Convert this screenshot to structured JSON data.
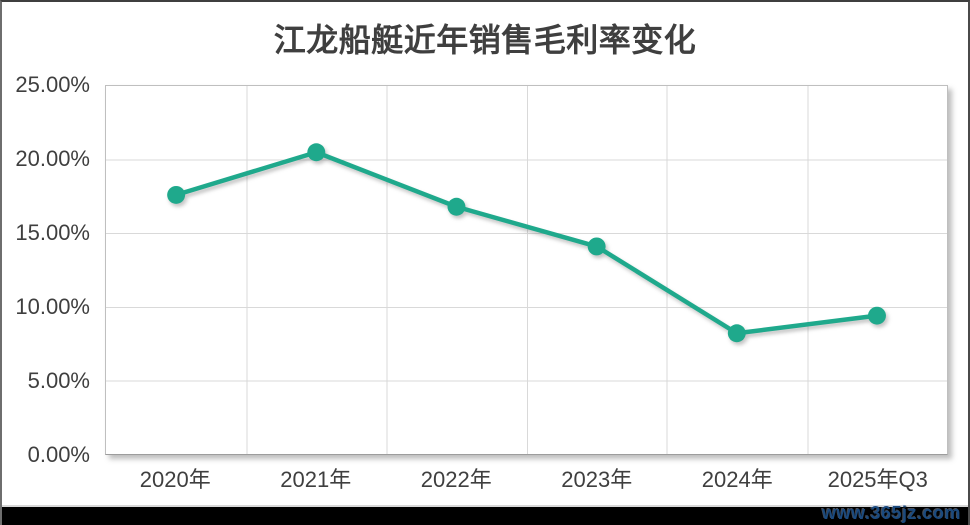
{
  "window": {
    "watermark": "www.365jz.com"
  },
  "chart_data": {
    "type": "line",
    "title": "江龙船艇近年销售毛利率变化",
    "categories": [
      "2020年",
      "2021年",
      "2022年",
      "2023年",
      "2024年",
      "2025年Q3"
    ],
    "values": [
      17.6,
      20.5,
      16.8,
      14.1,
      8.2,
      9.4
    ],
    "value_unit": "%",
    "xlabel": "",
    "ylabel": "",
    "ylim": [
      0,
      25
    ],
    "ytick_step": 5,
    "ytick_labels_top_to_bottom": [
      "25.00%",
      "20.00%",
      "15.00%",
      "10.00%",
      "5.00%",
      "0.00%"
    ],
    "grid": true,
    "legend_position": "none",
    "line_color": "#1FA98C",
    "marker": "circle",
    "title_color": "#3f3f3f",
    "axis_label_color": "#3f3f3f",
    "gridline_color": "#d9d9d9",
    "watermark_color": "#1b4a7e"
  }
}
